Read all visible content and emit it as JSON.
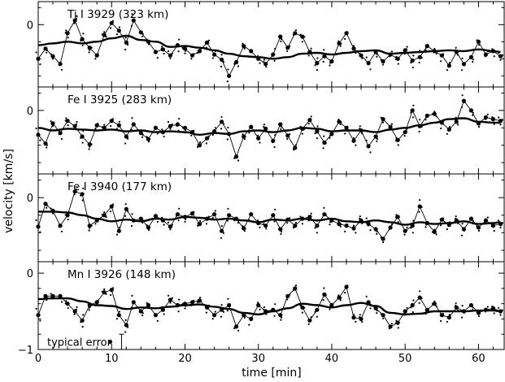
{
  "chart_data": {
    "type": "scatter",
    "xlabel": "time [min]",
    "ylabel": "velocity [km/s]",
    "x_ticks": [
      0,
      10,
      20,
      30,
      40,
      50,
      60
    ],
    "xlim": [
      0,
      63.5
    ],
    "panels": [
      {
        "title": "Ti I 3929 (323 km)",
        "ylim": [
          -0.73,
          0.27
        ],
        "y_ticks": [
          0
        ],
        "y_tick_labels": [
          "0"
        ],
        "series": [
          {
            "kind": "measured",
            "x": [
              0,
              1,
              2,
              3,
              4,
              5,
              6,
              7,
              8,
              9,
              10,
              11,
              12,
              13,
              14,
              15,
              16,
              17,
              18,
              19,
              20,
              21,
              22,
              23,
              24,
              25,
              26,
              27,
              28,
              29,
              30,
              31,
              32,
              33,
              34,
              35,
              36,
              37,
              38,
              39,
              40,
              41,
              42,
              43,
              44,
              45,
              46,
              47,
              48,
              49,
              50,
              51,
              52,
              53,
              54,
              55,
              56,
              57,
              58,
              59,
              60,
              61,
              62,
              63
            ],
            "values": [
              -0.4,
              -0.28,
              -0.37,
              -0.46,
              -0.1,
              0.05,
              -0.17,
              -0.27,
              -0.36,
              -0.12,
              0.02,
              -0.07,
              -0.21,
              0.05,
              -0.09,
              -0.2,
              -0.32,
              -0.29,
              -0.36,
              -0.24,
              -0.28,
              -0.36,
              -0.31,
              -0.21,
              -0.35,
              -0.41,
              -0.6,
              -0.44,
              -0.25,
              -0.31,
              -0.4,
              -0.46,
              -0.35,
              -0.14,
              -0.27,
              -0.1,
              -0.14,
              -0.32,
              -0.45,
              -0.37,
              -0.43,
              -0.22,
              -0.1,
              -0.28,
              -0.36,
              -0.45,
              -0.32,
              -0.43,
              -0.35,
              -0.4,
              -0.3,
              -0.42,
              -0.38,
              -0.25,
              -0.31,
              -0.36,
              -0.48,
              -0.32,
              -0.46,
              -0.38,
              -0.2,
              -0.35,
              -0.31,
              -0.37
            ]
          },
          {
            "kind": "smoothed",
            "x": [
              0,
              2,
              4,
              6,
              8,
              10,
              12,
              14,
              16,
              18,
              20,
              22,
              24,
              26,
              28,
              30,
              32,
              34,
              36,
              38,
              40,
              42,
              44,
              46,
              48,
              50,
              52,
              54,
              56,
              58,
              60,
              62,
              63
            ],
            "values": [
              -0.24,
              -0.22,
              -0.2,
              -0.22,
              -0.2,
              -0.16,
              -0.13,
              -0.18,
              -0.2,
              -0.26,
              -0.25,
              -0.27,
              -0.3,
              -0.34,
              -0.37,
              -0.38,
              -0.4,
              -0.38,
              -0.34,
              -0.33,
              -0.35,
              -0.33,
              -0.31,
              -0.3,
              -0.34,
              -0.33,
              -0.32,
              -0.31,
              -0.3,
              -0.31,
              -0.29,
              -0.31,
              -0.32
            ]
          }
        ]
      },
      {
        "title": "Fe I 3925 (283 km)",
        "ylim": [
          -0.73,
          0.27
        ],
        "y_ticks": [
          0
        ],
        "y_tick_labels": [
          "0"
        ],
        "series": [
          {
            "kind": "measured",
            "x": [
              0,
              1,
              2,
              3,
              4,
              5,
              6,
              7,
              8,
              9,
              10,
              11,
              12,
              13,
              14,
              15,
              16,
              17,
              18,
              19,
              20,
              21,
              22,
              23,
              24,
              25,
              26,
              27,
              28,
              29,
              30,
              31,
              32,
              33,
              34,
              35,
              36,
              37,
              38,
              39,
              40,
              41,
              42,
              43,
              44,
              45,
              46,
              47,
              48,
              49,
              50,
              51,
              52,
              53,
              54,
              55,
              56,
              57,
              58,
              59,
              60,
              61,
              62,
              63
            ],
            "values": [
              -0.28,
              -0.38,
              -0.15,
              -0.26,
              -0.12,
              -0.18,
              -0.3,
              -0.39,
              -0.17,
              -0.2,
              -0.12,
              -0.17,
              -0.3,
              -0.16,
              -0.26,
              -0.33,
              -0.2,
              -0.25,
              -0.18,
              -0.16,
              -0.2,
              -0.25,
              -0.4,
              -0.32,
              -0.24,
              -0.13,
              -0.27,
              -0.53,
              -0.3,
              -0.19,
              -0.32,
              -0.21,
              -0.35,
              -0.16,
              -0.29,
              -0.43,
              -0.21,
              -0.11,
              -0.24,
              -0.37,
              -0.27,
              -0.13,
              -0.2,
              -0.35,
              -0.23,
              -0.41,
              -0.3,
              -0.1,
              -0.19,
              -0.34,
              -0.25,
              0.0,
              -0.18,
              -0.06,
              -0.04,
              -0.14,
              -0.22,
              -0.13,
              0.11,
              0.0,
              -0.15,
              -0.08,
              -0.1,
              -0.12
            ]
          },
          {
            "kind": "smoothed",
            "x": [
              0,
              2,
              4,
              6,
              8,
              10,
              12,
              14,
              16,
              18,
              20,
              22,
              24,
              26,
              28,
              30,
              32,
              34,
              36,
              38,
              40,
              42,
              44,
              46,
              48,
              50,
              52,
              54,
              56,
              58,
              60,
              62,
              63
            ],
            "values": [
              -0.2,
              -0.23,
              -0.21,
              -0.22,
              -0.23,
              -0.22,
              -0.24,
              -0.23,
              -0.25,
              -0.24,
              -0.25,
              -0.28,
              -0.26,
              -0.27,
              -0.24,
              -0.23,
              -0.25,
              -0.23,
              -0.2,
              -0.21,
              -0.24,
              -0.23,
              -0.23,
              -0.25,
              -0.22,
              -0.2,
              -0.17,
              -0.14,
              -0.1,
              -0.09,
              -0.13,
              -0.14,
              -0.14
            ]
          }
        ]
      },
      {
        "title": "Fe I 3940 (177 km)",
        "ylim": [
          -0.73,
          0.27
        ],
        "y_ticks": [
          0
        ],
        "y_tick_labels": [
          "0"
        ],
        "series": [
          {
            "kind": "measured",
            "x": [
              0,
              1,
              2,
              3,
              4,
              5,
              6,
              7,
              8,
              9,
              10,
              11,
              12,
              13,
              14,
              15,
              16,
              17,
              18,
              19,
              20,
              21,
              22,
              23,
              24,
              25,
              26,
              27,
              28,
              29,
              30,
              31,
              32,
              33,
              34,
              35,
              36,
              37,
              38,
              39,
              40,
              41,
              42,
              43,
              44,
              45,
              46,
              47,
              48,
              49,
              50,
              51,
              52,
              53,
              54,
              55,
              56,
              57,
              58,
              59,
              60,
              61,
              62,
              63
            ],
            "values": [
              -0.33,
              -0.07,
              -0.15,
              -0.32,
              -0.2,
              0.07,
              0.04,
              -0.32,
              -0.26,
              -0.2,
              -0.1,
              -0.38,
              -0.13,
              -0.26,
              -0.24,
              -0.34,
              -0.21,
              -0.26,
              -0.33,
              -0.19,
              -0.22,
              -0.18,
              -0.3,
              -0.24,
              -0.19,
              -0.38,
              -0.2,
              -0.24,
              -0.35,
              -0.19,
              -0.29,
              -0.32,
              -0.2,
              -0.36,
              -0.25,
              -0.32,
              -0.24,
              -0.22,
              -0.32,
              -0.19,
              -0.26,
              -0.3,
              -0.32,
              -0.35,
              -0.26,
              -0.3,
              -0.36,
              -0.47,
              -0.34,
              -0.22,
              -0.38,
              -0.32,
              -0.1,
              -0.29,
              -0.39,
              -0.25,
              -0.31,
              -0.26,
              -0.36,
              -0.24,
              -0.34,
              -0.26,
              -0.32,
              -0.3
            ]
          },
          {
            "kind": "smoothed",
            "x": [
              0,
              2,
              4,
              6,
              8,
              10,
              12,
              14,
              16,
              18,
              20,
              22,
              24,
              26,
              28,
              30,
              32,
              34,
              36,
              38,
              40,
              42,
              44,
              46,
              48,
              50,
              52,
              54,
              56,
              58,
              60,
              62,
              63
            ],
            "values": [
              -0.16,
              -0.16,
              -0.17,
              -0.2,
              -0.24,
              -0.27,
              -0.25,
              -0.27,
              -0.24,
              -0.25,
              -0.22,
              -0.23,
              -0.25,
              -0.24,
              -0.26,
              -0.28,
              -0.25,
              -0.26,
              -0.24,
              -0.26,
              -0.24,
              -0.27,
              -0.28,
              -0.26,
              -0.28,
              -0.31,
              -0.28,
              -0.3,
              -0.29,
              -0.27,
              -0.3,
              -0.29,
              -0.28
            ]
          }
        ]
      },
      {
        "title": "Mn I 3926 (148 km)",
        "ylim": [
          -1.0,
          0.15
        ],
        "y_ticks": [
          0,
          -1
        ],
        "y_tick_labels": [
          "0",
          "−1"
        ],
        "series": [
          {
            "kind": "measured",
            "x": [
              0,
              1,
              2,
              3,
              4,
              5,
              6,
              7,
              8,
              9,
              10,
              11,
              12,
              13,
              14,
              15,
              16,
              17,
              18,
              19,
              20,
              21,
              22,
              23,
              24,
              25,
              26,
              27,
              28,
              29,
              30,
              31,
              32,
              33,
              34,
              35,
              36,
              37,
              38,
              39,
              40,
              41,
              42,
              43,
              44,
              45,
              46,
              47,
              48,
              49,
              50,
              51,
              52,
              53,
              54,
              55,
              56,
              57,
              58,
              59,
              60,
              61,
              62,
              63
            ],
            "values": [
              -0.55,
              -0.3,
              -0.3,
              -0.3,
              -0.4,
              -0.5,
              -0.62,
              -0.42,
              -0.38,
              -0.25,
              -0.22,
              -0.55,
              -0.68,
              -0.38,
              -0.5,
              -0.42,
              -0.55,
              -0.48,
              -0.35,
              -0.42,
              -0.4,
              -0.38,
              -0.36,
              -0.45,
              -0.55,
              -0.48,
              -0.42,
              -0.7,
              -0.55,
              -0.6,
              -0.42,
              -0.5,
              -0.48,
              -0.55,
              -0.3,
              -0.2,
              -0.45,
              -0.62,
              -0.48,
              -0.28,
              -0.42,
              -0.32,
              -0.18,
              -0.58,
              -0.6,
              -0.38,
              -0.46,
              -0.55,
              -0.7,
              -0.65,
              -0.5,
              -0.42,
              -0.32,
              -0.48,
              -0.4,
              -0.55,
              -0.58,
              -0.45,
              -0.5,
              -0.42,
              -0.52,
              -0.48,
              -0.46,
              -0.5
            ]
          },
          {
            "kind": "smoothed",
            "x": [
              0,
              2,
              4,
              6,
              8,
              10,
              12,
              14,
              16,
              18,
              20,
              22,
              24,
              26,
              28,
              30,
              32,
              34,
              36,
              38,
              40,
              42,
              44,
              46,
              48,
              50,
              52,
              54,
              56,
              58,
              60,
              62,
              63
            ],
            "values": [
              -0.34,
              -0.33,
              -0.33,
              -0.37,
              -0.42,
              -0.43,
              -0.47,
              -0.45,
              -0.46,
              -0.44,
              -0.42,
              -0.41,
              -0.44,
              -0.47,
              -0.52,
              -0.54,
              -0.5,
              -0.46,
              -0.4,
              -0.42,
              -0.45,
              -0.42,
              -0.39,
              -0.43,
              -0.52,
              -0.54,
              -0.53,
              -0.5,
              -0.5,
              -0.5,
              -0.49,
              -0.49,
              -0.5
            ]
          }
        ],
        "annotation": {
          "text": "typical error",
          "x": 9.8,
          "y": -0.9,
          "err": 0.1
        }
      }
    ]
  }
}
